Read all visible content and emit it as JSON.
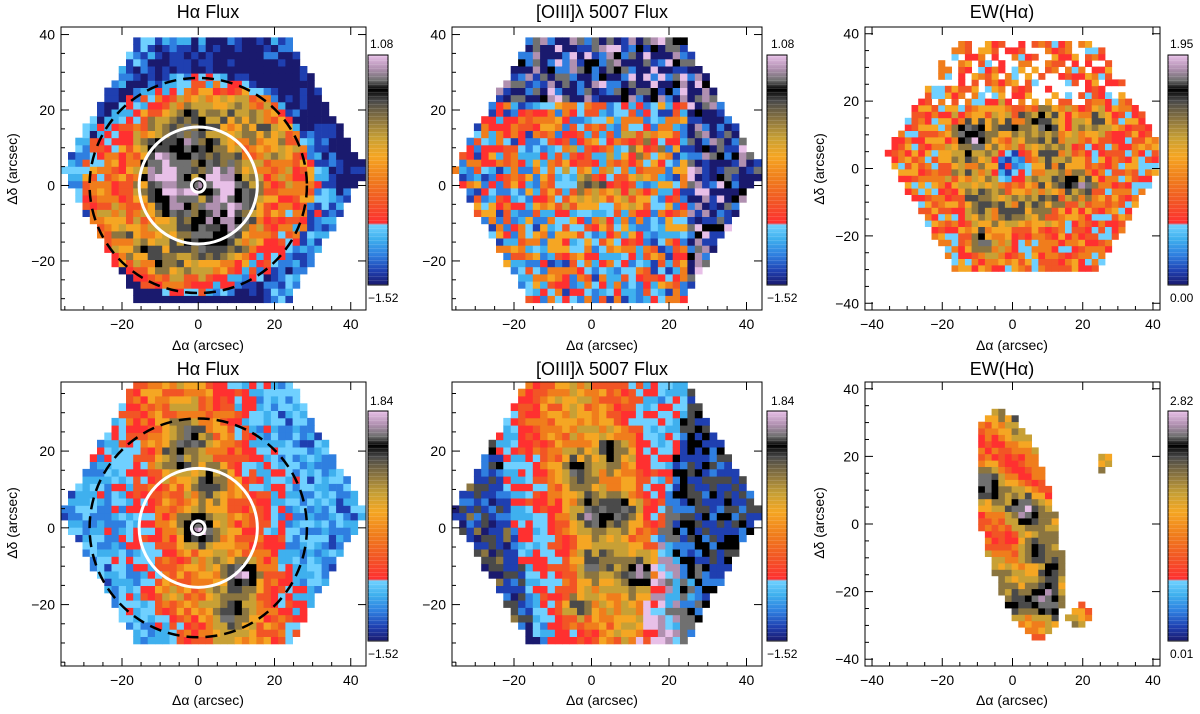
{
  "chart_data": [
    {
      "type": "heatmap",
      "title": "Hα Flux",
      "xlabel": "Δα (arcsec)",
      "ylabel": "Δδ (arcsec)",
      "xlim": [
        -36,
        44
      ],
      "ylim": [
        -33,
        42
      ],
      "xticks": [
        "−20",
        "0",
        "20",
        "40"
      ],
      "xtick_values": [
        -20,
        0,
        20,
        40
      ],
      "yticks": [
        "−20",
        "0",
        "20",
        "40"
      ],
      "ytick_values": [
        -20,
        0,
        20,
        40
      ],
      "colorbar": {
        "max": "1.08",
        "min": "−1.52"
      },
      "overlay": {
        "circles_solid": [
          1.8,
          15.5
        ],
        "circle_dashed": 28.5
      },
      "mask": "hexagon",
      "morphology": "ring"
    },
    {
      "type": "heatmap",
      "title": "[OIII]λ 5007 Flux",
      "xlabel": "Δα (arcsec)",
      "ylabel": "",
      "xlim": [
        -36,
        44
      ],
      "ylim": [
        -33,
        42
      ],
      "xticks": [
        "−20",
        "0",
        "20",
        "40"
      ],
      "xtick_values": [
        -20,
        0,
        20,
        40
      ],
      "yticks": [
        "−20",
        "0",
        "20",
        "40"
      ],
      "ytick_values": [
        -20,
        0,
        20,
        40
      ],
      "colorbar": {
        "max": "1.08",
        "min": "−1.52"
      },
      "mask": "hexagon",
      "morphology": "noisy"
    },
    {
      "type": "heatmap",
      "title": "EW(Hα)",
      "xlabel": "Δα (arcsec)",
      "ylabel": "Δδ (arcsec)",
      "xlim": [
        -42,
        42
      ],
      "ylim": [
        -42,
        42
      ],
      "xticks": [
        "−40",
        "−20",
        "0",
        "20",
        "40"
      ],
      "xtick_values": [
        -40,
        -20,
        0,
        20,
        40
      ],
      "yticks": [
        "−40",
        "−20",
        "0",
        "20",
        "40"
      ],
      "ytick_values": [
        -40,
        -20,
        0,
        20,
        40
      ],
      "colorbar": {
        "max": "1.95",
        "min": "0.00"
      },
      "mask": "hexagon",
      "morphology": "ew-ring"
    },
    {
      "type": "heatmap",
      "title": "Hα Flux",
      "xlabel": "Δα (arcsec)",
      "ylabel": "Δδ (arcsec)",
      "xlim": [
        -36,
        44
      ],
      "ylim": [
        -36,
        38
      ],
      "xticks": [
        "−20",
        "0",
        "20",
        "40"
      ],
      "xtick_values": [
        -20,
        0,
        20,
        40
      ],
      "yticks": [
        "−20",
        "0",
        "20"
      ],
      "ytick_values": [
        -20,
        0,
        20
      ],
      "colorbar": {
        "max": "1.84",
        "min": "−1.52"
      },
      "overlay": {
        "circles_solid": [
          1.8,
          15.5
        ],
        "circle_dashed": 28.5
      },
      "mask": "hexagon",
      "morphology": "band"
    },
    {
      "type": "heatmap",
      "title": "[OIII]λ 5007 Flux",
      "xlabel": "Δα (arcsec)",
      "ylabel": "",
      "xlim": [
        -36,
        44
      ],
      "ylim": [
        -36,
        38
      ],
      "xticks": [
        "−20",
        "0",
        "20",
        "40"
      ],
      "xtick_values": [
        -20,
        0,
        20,
        40
      ],
      "yticks": [
        "−20",
        "0",
        "20"
      ],
      "ytick_values": [
        -20,
        0,
        20
      ],
      "colorbar": {
        "max": "1.84",
        "min": "−1.52"
      },
      "mask": "hexagon",
      "morphology": "band-oiii"
    },
    {
      "type": "heatmap",
      "title": "EW(Hα)",
      "xlabel": "Δα (arcsec)",
      "ylabel": "Δδ (arcsec)",
      "xlim": [
        -42,
        42
      ],
      "ylim": [
        -42,
        42
      ],
      "xticks": [
        "−40",
        "−20",
        "0",
        "20",
        "40"
      ],
      "xtick_values": [
        -40,
        -20,
        0,
        20,
        40
      ],
      "yticks": [
        "−40",
        "−20",
        "0",
        "20",
        "40"
      ],
      "ytick_values": [
        -40,
        -20,
        0,
        20,
        40
      ],
      "colorbar": {
        "max": "2.82",
        "min": "0.01"
      },
      "mask": "blob",
      "morphology": "ew-blob"
    }
  ],
  "colormap": [
    "#1a1a6e",
    "#1f3fb0",
    "#2f7fe0",
    "#3fb0ee",
    "#6fd0ff",
    "#ff3030",
    "#f25525",
    "#f07d1c",
    "#f5a623",
    "#c8a035",
    "#8b7540",
    "#4a4a4a",
    "#000000",
    "#707070",
    "#b090b0",
    "#e8c0e8"
  ]
}
